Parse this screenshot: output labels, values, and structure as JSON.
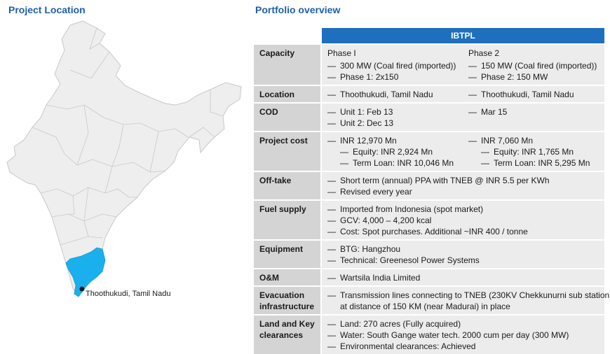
{
  "headings": {
    "left": "Project Location",
    "right": "Portfolio overview"
  },
  "map": {
    "pin_label": "Thoothukudi, Tamil Nadu",
    "highlight_color": "#1ab0ee",
    "base_color": "#eeeeee"
  },
  "table": {
    "header": "IBTPL",
    "header_color": "#1f6fbf",
    "rows": {
      "capacity": {
        "label": "Capacity",
        "p1": {
          "title": "Phase I",
          "l1": "300 MW (Coal fired (imported))",
          "l2": "Phase 1: 2x150"
        },
        "p2": {
          "title": "Phase 2",
          "l1": "150 MW (Coal fired (imported))",
          "l2": "Phase 2: 150 MW"
        }
      },
      "location": {
        "label": "Location",
        "p1": "Thoothukudi, Tamil Nadu",
        "p2": "Thoothukudi, Tamil Nadu"
      },
      "cod": {
        "label": "COD",
        "p1a": "Unit 1: Feb 13",
        "p1b": "Unit 2: Dec 13",
        "p2": "Mar 15"
      },
      "cost": {
        "label": "Project cost",
        "p1": {
          "total": "INR 12,970 Mn",
          "equity": "Equity: INR 2,924 Mn",
          "loan": "Term Loan: INR 10,046 Mn"
        },
        "p2": {
          "total": "INR 7,060 Mn",
          "equity": "Equity: INR 1,765 Mn",
          "loan": "Term Loan: INR 5,295 Mn"
        }
      },
      "offtake": {
        "label": "Off-take",
        "l1": "Short term (annual) PPA with TNEB @ INR 5.5 per KWh",
        "l2": "Revised every year"
      },
      "fuel": {
        "label": "Fuel supply",
        "l1": "Imported from Indonesia (spot market)",
        "l2": "GCV: 4,000 – 4,200 kcal",
        "l3": "Cost: Spot purchases. Additional ~INR 400 / tonne"
      },
      "equipment": {
        "label": "Equipment",
        "l1": "BTG: Hangzhou",
        "l2": "Technical: Greenesol Power Systems"
      },
      "om": {
        "label": "O&M",
        "l1": "Wartsila India Limited"
      },
      "evac": {
        "label1": "Evacuation",
        "label2": "infrastructure",
        "l1": "Transmission lines connecting to TNEB (230KV Chekkunurni sub station)",
        "l2": "at distance of 150 KM (near Madurai) in place"
      },
      "land": {
        "label1": "Land and Key",
        "label2": "clearances",
        "l1": "Land: 270 acres (Fully acquired)",
        "l2": "Water: South Gange water tech. 2000 cum per day (300 MW)",
        "l3": "Environmental clearances: Achieved"
      }
    }
  }
}
